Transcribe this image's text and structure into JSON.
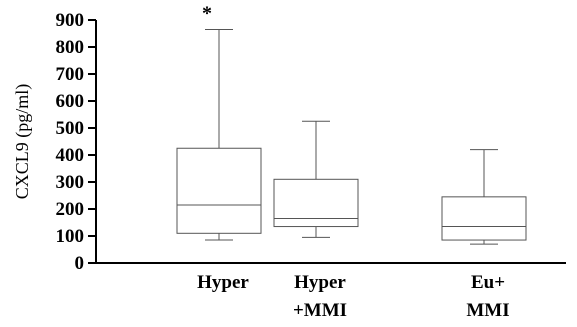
{
  "chart_data": {
    "type": "box",
    "ylabel": "CXCL9 (pg/ml)",
    "xlabel": "",
    "ylim": [
      0,
      900
    ],
    "yticks": [
      0,
      100,
      200,
      300,
      400,
      500,
      600,
      700,
      800,
      900
    ],
    "grid": false,
    "categories": [
      {
        "lines": [
          "Hyper"
        ]
      },
      {
        "lines": [
          "Hyper",
          "+MMI"
        ]
      },
      {
        "lines": [
          "Eu+",
          "MMI"
        ]
      }
    ],
    "boxes": [
      {
        "whisker_low": 85,
        "q1": 110,
        "median": 215,
        "q3": 425,
        "whisker_high": 865,
        "annotation": "*"
      },
      {
        "whisker_low": 95,
        "q1": 135,
        "median": 165,
        "q3": 310,
        "whisker_high": 525,
        "annotation": ""
      },
      {
        "whisker_low": 70,
        "q1": 85,
        "median": 135,
        "q3": 245,
        "whisker_high": 420,
        "annotation": ""
      }
    ]
  },
  "colors": {
    "axis": "#000000",
    "box_stroke": "#555555"
  }
}
